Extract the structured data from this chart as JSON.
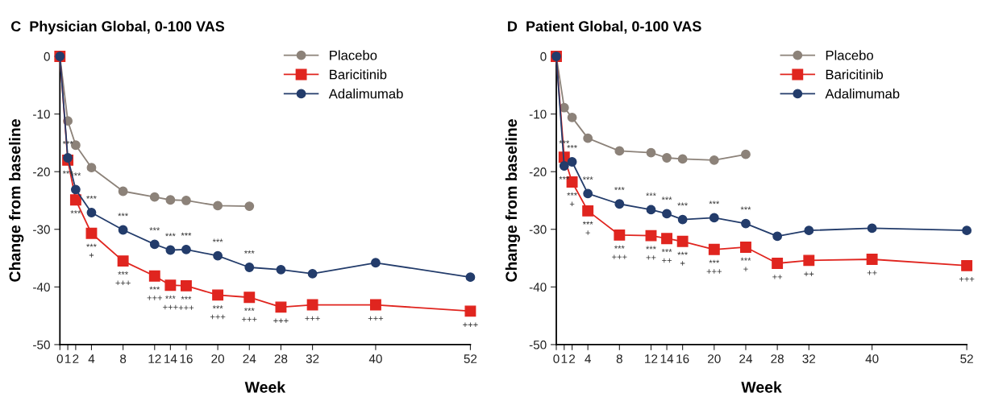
{
  "chart_data": [
    {
      "type": "line",
      "title": "C  Physician Global, 0-100 VAS",
      "xlabel": "Week",
      "ylabel": "Change from baseline",
      "x": [
        0,
        1,
        2,
        4,
        8,
        12,
        14,
        16,
        20,
        24,
        28,
        32,
        40,
        52
      ],
      "series": [
        {
          "name": "Placebo",
          "color": "#8c8279",
          "marker": "circle",
          "values": [
            0,
            -11.2,
            -15.4,
            -19.3,
            -23.4,
            -24.4,
            -24.9,
            -25.0,
            -25.9,
            -26.0,
            null,
            null,
            null,
            null
          ]
        },
        {
          "name": "Baricitinib",
          "color": "#e0251f",
          "marker": "square",
          "values": [
            0,
            -18.0,
            -24.9,
            -30.7,
            -35.5,
            -38.1,
            -39.7,
            -39.8,
            -41.4,
            -41.8,
            -43.5,
            -43.1,
            -43.1,
            -44.2
          ]
        },
        {
          "name": "Adalimumab",
          "color": "#233c6b",
          "marker": "circle",
          "values": [
            0,
            -17.6,
            -23.1,
            -27.1,
            -30.1,
            -32.6,
            -33.6,
            -33.5,
            -34.6,
            -36.6,
            -37.0,
            -37.7,
            -35.8,
            -38.3
          ]
        }
      ],
      "xlim": [
        0,
        52
      ],
      "xticks": [
        0,
        1,
        2,
        4,
        8,
        12,
        14,
        16,
        20,
        24,
        28,
        32,
        40,
        52
      ],
      "ylim": [
        -50,
        0
      ],
      "yticks": [
        -50,
        -40,
        -30,
        -20,
        -10,
        0
      ],
      "grid": false,
      "legend": "top right",
      "annotations": [
        {
          "text": "***",
          "x": 1,
          "y": -18.0
        },
        {
          "text": "***",
          "x": 1,
          "y": -17.6
        },
        {
          "text": "***",
          "x": 2,
          "y": -23.1
        },
        {
          "text": "***",
          "x": 2,
          "y": -24.9
        },
        {
          "text": "***",
          "x": 4,
          "y": -27.1
        },
        {
          "text": "***\n+",
          "x": 4,
          "y": -30.7
        },
        {
          "text": "***",
          "x": 8,
          "y": -30.1
        },
        {
          "text": "***\n+++",
          "x": 8,
          "y": -35.5
        },
        {
          "text": "***",
          "x": 12,
          "y": -32.6
        },
        {
          "text": "***\n+++",
          "x": 12,
          "y": -38.1
        },
        {
          "text": "***",
          "x": 14,
          "y": -33.6
        },
        {
          "text": "***\n+++",
          "x": 14,
          "y": -39.7
        },
        {
          "text": "***",
          "x": 16,
          "y": -33.5
        },
        {
          "text": "***\n+++",
          "x": 16,
          "y": -39.8
        },
        {
          "text": "***",
          "x": 20,
          "y": -34.6
        },
        {
          "text": "***\n+++",
          "x": 20,
          "y": -41.4
        },
        {
          "text": "***",
          "x": 24,
          "y": -36.6
        },
        {
          "text": "***\n+++",
          "x": 24,
          "y": -41.8
        },
        {
          "text": "+++",
          "x": 28,
          "y": -43.5
        },
        {
          "text": "+++",
          "x": 32,
          "y": -43.1
        },
        {
          "text": "+++",
          "x": 40,
          "y": -43.1
        },
        {
          "text": "+++",
          "x": 52,
          "y": -44.2
        }
      ]
    },
    {
      "type": "line",
      "title": "D  Patient Global, 0-100 VAS",
      "xlabel": "Week",
      "ylabel": "Change from baseline",
      "x": [
        0,
        1,
        2,
        4,
        8,
        12,
        14,
        16,
        20,
        24,
        28,
        32,
        40,
        52
      ],
      "series": [
        {
          "name": "Placebo",
          "color": "#8c8279",
          "marker": "circle",
          "values": [
            0,
            -8.9,
            -10.6,
            -14.2,
            -16.4,
            -16.7,
            -17.6,
            -17.8,
            -18.0,
            -17.0,
            null,
            null,
            null,
            null
          ]
        },
        {
          "name": "Baricitinib",
          "color": "#e0251f",
          "marker": "square",
          "values": [
            0,
            -17.5,
            -21.8,
            -26.8,
            -31.0,
            -31.1,
            -31.6,
            -32.1,
            -33.5,
            -33.1,
            -35.9,
            -35.4,
            -35.2,
            -36.3
          ]
        },
        {
          "name": "Adalimumab",
          "color": "#233c6b",
          "marker": "circle",
          "values": [
            0,
            -19.0,
            -18.3,
            -23.8,
            -25.6,
            -26.6,
            -27.3,
            -28.3,
            -28.0,
            -29.0,
            -31.2,
            -30.2,
            -29.8,
            -30.2
          ]
        }
      ],
      "xlim": [
        0,
        52
      ],
      "xticks": [
        0,
        1,
        2,
        4,
        8,
        12,
        14,
        16,
        20,
        24,
        28,
        32,
        40,
        52
      ],
      "ylim": [
        -50,
        0
      ],
      "yticks": [
        -50,
        -40,
        -30,
        -20,
        -10,
        0
      ],
      "grid": false,
      "legend": "top right",
      "annotations": [
        {
          "text": "***",
          "x": 1,
          "y": -17.5
        },
        {
          "text": "***",
          "x": 2,
          "y": -18.3
        },
        {
          "text": "***",
          "x": 1,
          "y": -19.0
        },
        {
          "text": "***\n+",
          "x": 2,
          "y": -21.8
        },
        {
          "text": "***",
          "x": 4,
          "y": -23.8
        },
        {
          "text": "***\n+",
          "x": 4,
          "y": -26.8
        },
        {
          "text": "***",
          "x": 8,
          "y": -25.6
        },
        {
          "text": "***\n+++",
          "x": 8,
          "y": -31.0
        },
        {
          "text": "***",
          "x": 12,
          "y": -26.6
        },
        {
          "text": "***\n++",
          "x": 12,
          "y": -31.1
        },
        {
          "text": "***",
          "x": 14,
          "y": -27.3
        },
        {
          "text": "***\n++",
          "x": 14,
          "y": -31.6
        },
        {
          "text": "***",
          "x": 16,
          "y": -28.3
        },
        {
          "text": "***\n+",
          "x": 16,
          "y": -32.1
        },
        {
          "text": "***",
          "x": 20,
          "y": -28.0
        },
        {
          "text": "***\n+++",
          "x": 20,
          "y": -33.5
        },
        {
          "text": "***",
          "x": 24,
          "y": -29.0
        },
        {
          "text": "***\n+",
          "x": 24,
          "y": -33.1
        },
        {
          "text": "++",
          "x": 28,
          "y": -35.9
        },
        {
          "text": "++",
          "x": 32,
          "y": -35.4
        },
        {
          "text": "++",
          "x": 40,
          "y": -35.2
        },
        {
          "text": "+++",
          "x": 52,
          "y": -36.3
        }
      ]
    }
  ]
}
